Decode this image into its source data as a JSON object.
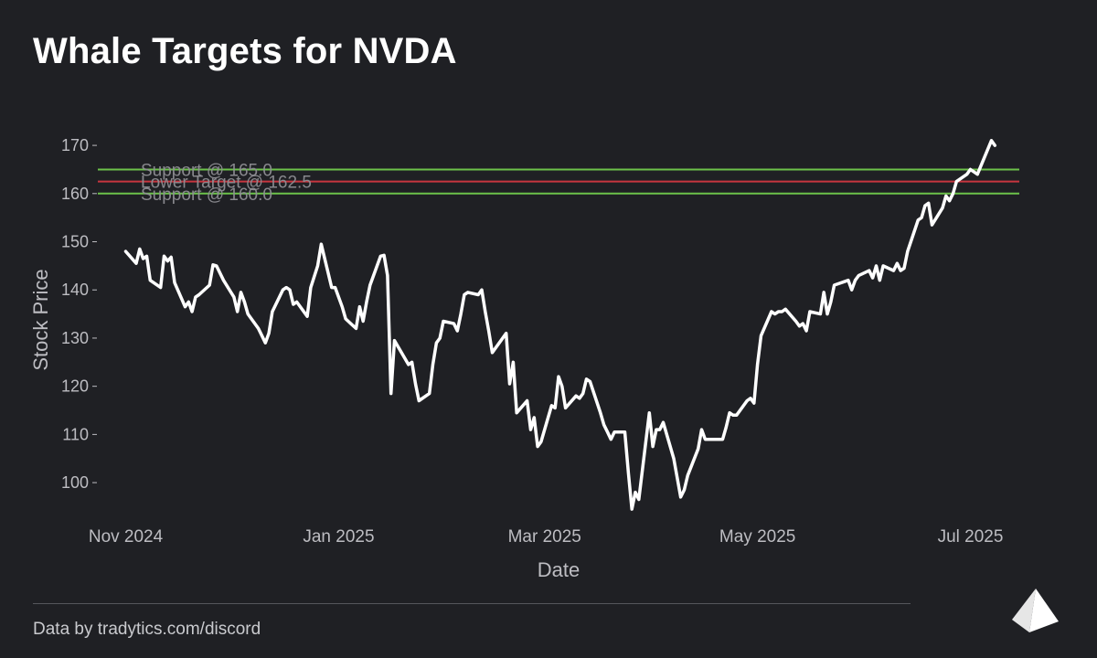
{
  "title": "Whale Targets for NVDA",
  "footer": "Data by tradytics.com/discord",
  "colors": {
    "background": "#1f2024",
    "price_line": "#ffffff",
    "support_line": "#6cc24a",
    "target_line": "#c8353f",
    "axis_text": "#bdbdc2"
  },
  "logo_icon": "tradytics-logo-icon",
  "chart_data": {
    "type": "line",
    "title": "Whale Targets for NVDA",
    "xlabel": "Date",
    "ylabel": "Stock Price",
    "xlim": [
      "2024-10-24",
      "2025-07-15"
    ],
    "ylim": [
      93,
      174
    ],
    "x_ticks": [
      {
        "date": "2024-11-01",
        "label": "Nov 2024"
      },
      {
        "date": "2025-01-01",
        "label": "Jan 2025"
      },
      {
        "date": "2025-03-01",
        "label": "Mar 2025"
      },
      {
        "date": "2025-05-01",
        "label": "May 2025"
      },
      {
        "date": "2025-07-01",
        "label": "Jul 2025"
      }
    ],
    "y_ticks": [
      100,
      110,
      120,
      130,
      140,
      150,
      160,
      170
    ],
    "grid": false,
    "series": [
      {
        "points": [
          [
            "2024-11-01",
            148.0
          ],
          [
            "2024-11-04",
            145.5
          ],
          [
            "2024-11-05",
            148.5
          ],
          [
            "2024-11-06",
            146.5
          ],
          [
            "2024-11-07",
            147.0
          ],
          [
            "2024-11-08",
            142.0
          ],
          [
            "2024-11-11",
            140.5
          ],
          [
            "2024-11-12",
            147.0
          ],
          [
            "2024-11-13",
            146.0
          ],
          [
            "2024-11-14",
            146.8
          ],
          [
            "2024-11-15",
            141.5
          ],
          [
            "2024-11-18",
            136.5
          ],
          [
            "2024-11-19",
            137.5
          ],
          [
            "2024-11-20",
            135.5
          ],
          [
            "2024-11-21",
            138.5
          ],
          [
            "2024-11-22",
            139.0
          ],
          [
            "2024-11-25",
            141.0
          ],
          [
            "2024-11-26",
            145.2
          ],
          [
            "2024-11-27",
            145.0
          ],
          [
            "2024-11-29",
            142.0
          ],
          [
            "2024-12-02",
            138.5
          ],
          [
            "2024-12-03",
            135.5
          ],
          [
            "2024-12-04",
            139.5
          ],
          [
            "2024-12-05",
            137.5
          ],
          [
            "2024-12-06",
            135.0
          ],
          [
            "2024-12-09",
            132.0
          ],
          [
            "2024-12-10",
            130.5
          ],
          [
            "2024-12-11",
            129.0
          ],
          [
            "2024-12-12",
            131.0
          ],
          [
            "2024-12-13",
            135.5
          ],
          [
            "2024-12-16",
            140.0
          ],
          [
            "2024-12-17",
            140.5
          ],
          [
            "2024-12-18",
            140.0
          ],
          [
            "2024-12-19",
            137.0
          ],
          [
            "2024-12-20",
            137.5
          ],
          [
            "2024-12-23",
            134.5
          ],
          [
            "2024-12-24",
            140.5
          ],
          [
            "2024-12-26",
            145.0
          ],
          [
            "2024-12-27",
            149.5
          ],
          [
            "2024-12-30",
            140.5
          ],
          [
            "2024-12-31",
            140.5
          ],
          [
            "2025-01-02",
            136.5
          ],
          [
            "2025-01-03",
            134.0
          ],
          [
            "2025-01-06",
            132.0
          ],
          [
            "2025-01-07",
            136.5
          ],
          [
            "2025-01-08",
            133.5
          ],
          [
            "2025-01-09",
            137.5
          ],
          [
            "2025-01-10",
            141.0
          ],
          [
            "2025-01-13",
            147.0
          ],
          [
            "2025-01-14",
            147.2
          ],
          [
            "2025-01-15",
            143.0
          ],
          [
            "2025-01-16",
            118.5
          ],
          [
            "2025-01-17",
            129.5
          ],
          [
            "2025-01-21",
            124.5
          ],
          [
            "2025-01-22",
            125.0
          ],
          [
            "2025-01-23",
            120.5
          ],
          [
            "2025-01-24",
            117.0
          ],
          [
            "2025-01-27",
            118.5
          ],
          [
            "2025-01-28",
            124.5
          ],
          [
            "2025-01-29",
            129.0
          ],
          [
            "2025-01-30",
            130.0
          ],
          [
            "2025-01-31",
            133.5
          ],
          [
            "2025-02-03",
            133.0
          ],
          [
            "2025-02-04",
            131.5
          ],
          [
            "2025-02-05",
            135.0
          ],
          [
            "2025-02-06",
            139.0
          ],
          [
            "2025-02-07",
            139.5
          ],
          [
            "2025-02-10",
            139.0
          ],
          [
            "2025-02-11",
            140.0
          ],
          [
            "2025-02-12",
            135.5
          ],
          [
            "2025-02-13",
            131.5
          ],
          [
            "2025-02-14",
            127.0
          ],
          [
            "2025-02-18",
            131.0
          ],
          [
            "2025-02-19",
            120.5
          ],
          [
            "2025-02-20",
            125.0
          ],
          [
            "2025-02-21",
            114.5
          ],
          [
            "2025-02-24",
            117.0
          ],
          [
            "2025-02-25",
            111.0
          ],
          [
            "2025-02-26",
            113.5
          ],
          [
            "2025-02-27",
            107.5
          ],
          [
            "2025-02-28",
            108.5
          ],
          [
            "2025-03-03",
            116.0
          ],
          [
            "2025-03-04",
            115.5
          ],
          [
            "2025-03-05",
            122.0
          ],
          [
            "2025-03-06",
            120.0
          ],
          [
            "2025-03-07",
            115.5
          ],
          [
            "2025-03-10",
            118.0
          ],
          [
            "2025-03-11",
            117.5
          ],
          [
            "2025-03-12",
            118.5
          ],
          [
            "2025-03-13",
            121.5
          ],
          [
            "2025-03-14",
            121.0
          ],
          [
            "2025-03-17",
            114.5
          ],
          [
            "2025-03-18",
            112.0
          ],
          [
            "2025-03-19",
            110.5
          ],
          [
            "2025-03-20",
            109.0
          ],
          [
            "2025-03-21",
            110.5
          ],
          [
            "2025-03-24",
            110.5
          ],
          [
            "2025-03-25",
            102.0
          ],
          [
            "2025-03-26",
            94.5
          ],
          [
            "2025-03-27",
            98.0
          ],
          [
            "2025-03-28",
            96.5
          ],
          [
            "2025-03-31",
            114.5
          ],
          [
            "2025-04-01",
            107.5
          ],
          [
            "2025-04-02",
            111.0
          ],
          [
            "2025-04-03",
            111.0
          ],
          [
            "2025-04-04",
            112.5
          ],
          [
            "2025-04-07",
            105.0
          ],
          [
            "2025-04-08",
            101.0
          ],
          [
            "2025-04-09",
            97.0
          ],
          [
            "2025-04-10",
            98.5
          ],
          [
            "2025-04-11",
            101.5
          ],
          [
            "2025-04-14",
            107.0
          ],
          [
            "2025-04-15",
            111.0
          ],
          [
            "2025-04-16",
            109.0
          ],
          [
            "2025-04-17",
            109.0
          ],
          [
            "2025-04-21",
            109.0
          ],
          [
            "2025-04-22",
            111.5
          ],
          [
            "2025-04-23",
            114.5
          ],
          [
            "2025-04-24",
            114.0
          ],
          [
            "2025-04-25",
            114.0
          ],
          [
            "2025-04-28",
            117.0
          ],
          [
            "2025-04-29",
            117.5
          ],
          [
            "2025-04-30",
            116.5
          ],
          [
            "2025-05-01",
            124.5
          ],
          [
            "2025-05-02",
            130.5
          ],
          [
            "2025-05-05",
            135.5
          ],
          [
            "2025-05-06",
            135.0
          ],
          [
            "2025-05-07",
            135.5
          ],
          [
            "2025-05-08",
            135.5
          ],
          [
            "2025-05-09",
            136.0
          ],
          [
            "2025-05-12",
            133.5
          ],
          [
            "2025-05-13",
            132.5
          ],
          [
            "2025-05-14",
            133.0
          ],
          [
            "2025-05-15",
            131.5
          ],
          [
            "2025-05-16",
            135.5
          ],
          [
            "2025-05-19",
            135.0
          ],
          [
            "2025-05-20",
            139.5
          ],
          [
            "2025-05-21",
            135.0
          ],
          [
            "2025-05-22",
            137.5
          ],
          [
            "2025-05-23",
            141.0
          ],
          [
            "2025-05-27",
            142.0
          ],
          [
            "2025-05-28",
            140.0
          ],
          [
            "2025-05-29",
            142.0
          ],
          [
            "2025-05-30",
            143.0
          ],
          [
            "2025-06-02",
            144.0
          ],
          [
            "2025-06-03",
            142.5
          ],
          [
            "2025-06-04",
            145.0
          ],
          [
            "2025-06-05",
            142.0
          ],
          [
            "2025-06-06",
            145.0
          ],
          [
            "2025-06-09",
            144.0
          ],
          [
            "2025-06-10",
            145.5
          ],
          [
            "2025-06-11",
            144.0
          ],
          [
            "2025-06-12",
            144.5
          ],
          [
            "2025-06-13",
            148.0
          ],
          [
            "2025-06-16",
            154.5
          ],
          [
            "2025-06-17",
            155.0
          ],
          [
            "2025-06-18",
            157.5
          ],
          [
            "2025-06-19",
            158.0
          ],
          [
            "2025-06-20",
            153.5
          ],
          [
            "2025-06-23",
            157.0
          ],
          [
            "2025-06-24",
            159.5
          ],
          [
            "2025-06-25",
            158.5
          ],
          [
            "2025-06-26",
            160.0
          ],
          [
            "2025-06-27",
            162.5
          ],
          [
            "2025-06-30",
            164.0
          ],
          [
            "2025-07-01",
            165.0
          ],
          [
            "2025-07-02",
            164.5
          ],
          [
            "2025-07-03",
            164.0
          ],
          [
            "2025-07-07",
            171.0
          ],
          [
            "2025-07-08",
            170.0
          ]
        ]
      }
    ],
    "reference_lines": [
      {
        "label": "Support @ 165.0",
        "value": 165.0,
        "color": "#6cc24a"
      },
      {
        "label": "Lower Target @ 162.5",
        "value": 162.5,
        "color": "#c8353f"
      },
      {
        "label": "Support @ 160.0",
        "value": 160.0,
        "color": "#6cc24a"
      }
    ]
  }
}
